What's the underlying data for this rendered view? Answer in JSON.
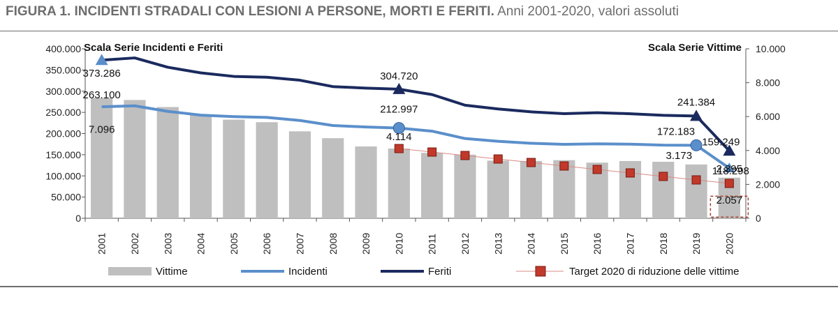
{
  "figure": {
    "label": "FIGURA 1. INCIDENTI STRADALI CON LESIONI A PERSONE, MORTI E FERITI.",
    "subtitle": "Anni 2001-2020, valori assoluti"
  },
  "chart_data": {
    "type": "bar+line",
    "title": "FIGURA 1. INCIDENTI STRADALI CON LESIONI A PERSONE, MORTI E FERITI. Anni 2001-2020, valori assoluti",
    "left_axis_label": "Scala Serie Incidenti e Feriti",
    "right_axis_label": "Scala Serie Vittime",
    "left_ylim": [
      0,
      400000
    ],
    "right_ylim": [
      0,
      10000
    ],
    "left_ticks": [
      "0",
      "50.000",
      "100.000",
      "150.000",
      "200.000",
      "250.000",
      "300.000",
      "350.000",
      "400.000"
    ],
    "right_ticks": [
      "0",
      "2.000",
      "4.000",
      "6.000",
      "8.000",
      "10.000"
    ],
    "categories": [
      "2001",
      "2002",
      "2003",
      "2004",
      "2005",
      "2006",
      "2007",
      "2008",
      "2009",
      "2010",
      "2011",
      "2012",
      "2013",
      "2014",
      "2015",
      "2016",
      "2017",
      "2018",
      "2019",
      "2020"
    ],
    "series": [
      {
        "name": "Vittime",
        "type": "bar",
        "axis": "right",
        "color": "#bfbfbf",
        "values": [
          7096,
          6980,
          6563,
          6122,
          5818,
          5669,
          5131,
          4725,
          4237,
          4114,
          3860,
          3753,
          3401,
          3381,
          3428,
          3283,
          3378,
          3334,
          3173,
          2395
        ]
      },
      {
        "name": "Incidenti",
        "type": "line",
        "axis": "left",
        "color": "#5b8fcb",
        "values": [
          263100,
          265402,
          252271,
          243490,
          240011,
          238124,
          230871,
          218963,
          215405,
          212997,
          205638,
          188228,
          181660,
          177031,
          174539,
          175791,
          174933,
          172553,
          172183,
          118298
        ]
      },
      {
        "name": "Feriti",
        "type": "line",
        "axis": "left",
        "color": "#1b2a5e",
        "values": [
          373286,
          378492,
          356475,
          343179,
          334858,
          332955,
          325850,
          310745,
          307258,
          304720,
          292019,
          266864,
          258093,
          251147,
          246920,
          249175,
          246750,
          242919,
          241384,
          159249
        ]
      },
      {
        "name": "Target 2020 di riduzione delle vittime",
        "type": "line",
        "axis": "right",
        "color": "#c0392b",
        "values": [
          null,
          null,
          null,
          null,
          null,
          null,
          null,
          null,
          null,
          4114,
          3908,
          3703,
          3497,
          3291,
          3086,
          2880,
          2674,
          2469,
          2263,
          2057
        ]
      }
    ],
    "annotations": [
      {
        "series": "Feriti",
        "year": "2001",
        "text": "373.286"
      },
      {
        "series": "Incidenti",
        "year": "2001",
        "text": "263.100"
      },
      {
        "series": "Vittime",
        "year": "2001",
        "text": "7.096"
      },
      {
        "series": "Feriti",
        "year": "2010",
        "text": "304.720"
      },
      {
        "series": "Incidenti",
        "year": "2010",
        "text": "212.997"
      },
      {
        "series": "Vittime",
        "year": "2010",
        "text": "4.114"
      },
      {
        "series": "Feriti",
        "year": "2019",
        "text": "241.384"
      },
      {
        "series": "Incidenti",
        "year": "2019",
        "text": "172.183"
      },
      {
        "series": "Vittime",
        "year": "2019",
        "text": "3.173"
      },
      {
        "series": "Feriti",
        "year": "2020",
        "text": "159.249"
      },
      {
        "series": "Incidenti",
        "year": "2020",
        "text": "118.298"
      },
      {
        "series": "Vittime",
        "year": "2020",
        "text": "2.395"
      },
      {
        "series": "Target 2020 di riduzione delle vittime",
        "year": "2020",
        "text": "2.057"
      }
    ],
    "legend_position": "bottom",
    "grid": false
  }
}
